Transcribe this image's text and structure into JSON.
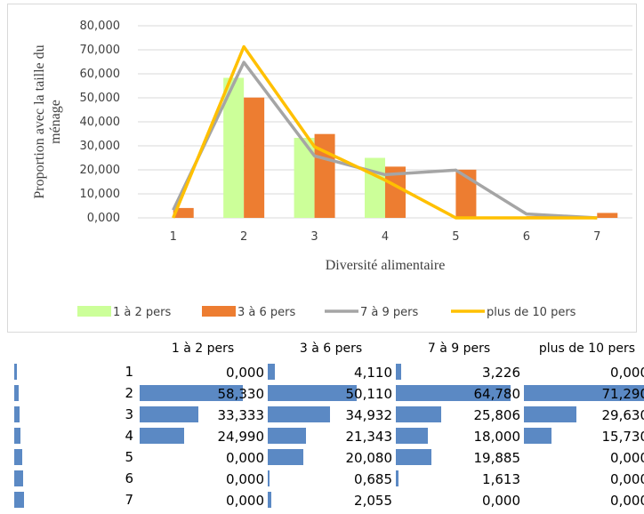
{
  "chart_data": {
    "type": "bar+line",
    "categories": [
      "1",
      "2",
      "3",
      "4",
      "5",
      "6",
      "7"
    ],
    "ylabel": "Proportion avec la taille du ménage",
    "ylabel_lines": [
      "Proportion avec la taille du",
      "ménage"
    ],
    "xlabel": "Diversité alimentaire",
    "yticks": [
      "0,000",
      "10,000",
      "20,000",
      "30,000",
      "40,000",
      "50,000",
      "60,000",
      "70,000",
      "80,000"
    ],
    "ylim": [
      0,
      80
    ],
    "grid": true,
    "legend_position": "bottom",
    "series": [
      {
        "name": "1 à 2 pers",
        "kind": "bar",
        "color": "#ccff99",
        "values": [
          0,
          58.33,
          33.333,
          24.99,
          0,
          0,
          0
        ]
      },
      {
        "name": "3 à 6 pers",
        "kind": "bar",
        "color": "#ed7d31",
        "values": [
          4.11,
          50.11,
          34.932,
          21.343,
          20.08,
          0.685,
          2.055
        ]
      },
      {
        "name": "7 à 9 pers",
        "kind": "line",
        "color": "#a5a5a5",
        "values": [
          3.226,
          64.78,
          25.806,
          18.0,
          19.885,
          1.613,
          0.0
        ]
      },
      {
        "name": "plus de 10 pers",
        "kind": "line",
        "color": "#ffc000",
        "values": [
          0,
          71.29,
          29.63,
          15.73,
          0,
          0,
          0
        ]
      }
    ]
  },
  "table": {
    "headers": [
      "1 à 2 pers",
      "3 à 6 pers",
      "7 à 9 pers",
      "plus de 10 pers"
    ],
    "rows": [
      {
        "label": "1",
        "cells": [
          "0,000",
          "4,110",
          "3,226",
          "0,000"
        ]
      },
      {
        "label": "2",
        "cells": [
          "58,330",
          "50,110",
          "64,780",
          "71,290"
        ]
      },
      {
        "label": "3",
        "cells": [
          "33,333",
          "34,932",
          "25,806",
          "29,630"
        ]
      },
      {
        "label": "4",
        "cells": [
          "24,990",
          "21,343",
          "18,000",
          "15,730"
        ]
      },
      {
        "label": "5",
        "cells": [
          "0,000",
          "20,080",
          "19,885",
          "0,000"
        ]
      },
      {
        "label": "6",
        "cells": [
          "0,000",
          "0,685",
          "1,613",
          "0,000"
        ]
      },
      {
        "label": "7",
        "cells": [
          "0,000",
          "2,055",
          "0,000",
          "0,000"
        ]
      }
    ],
    "values": [
      [
        0,
        4.11,
        3.226,
        0
      ],
      [
        58.33,
        50.11,
        64.78,
        71.29
      ],
      [
        33.333,
        34.932,
        25.806,
        29.63
      ],
      [
        24.99,
        21.343,
        18.0,
        15.73
      ],
      [
        0,
        20.08,
        19.885,
        0
      ],
      [
        0,
        0.685,
        1.613,
        0
      ],
      [
        0,
        2.055,
        0,
        0
      ]
    ],
    "row_bar_color": "#5b89c4"
  }
}
